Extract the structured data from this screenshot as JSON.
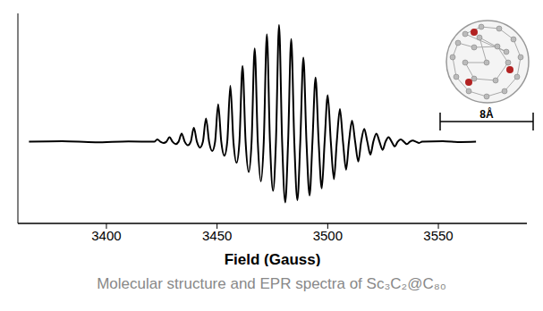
{
  "chart_data": {
    "type": "line",
    "title": "Molecular structure and EPR spectra of Sc₃C₂@C₈₀",
    "xlabel": "Field (Gauss)",
    "annotations": [
      "8Å"
    ],
    "color": "#000000",
    "xlim": [
      3360,
      3590
    ],
    "xticks": [
      3400,
      3450,
      3500,
      3550
    ],
    "ylim": [
      -70,
      110
    ],
    "tick_labels": "x",
    "grid": false,
    "x": [
      3365,
      3380,
      3395,
      3410,
      3421.6,
      3423.0,
      3424.4,
      3425.8,
      3427.1,
      3428.5,
      3429.9,
      3431.3,
      3432.6,
      3434.0,
      3435.4,
      3436.8,
      3438.1,
      3439.5,
      3440.9,
      3442.3,
      3443.6,
      3445.0,
      3446.4,
      3447.8,
      3449.1,
      3450.5,
      3451.9,
      3453.3,
      3454.6,
      3456.0,
      3457.4,
      3458.8,
      3460.1,
      3461.5,
      3462.9,
      3464.3,
      3465.6,
      3467.0,
      3468.4,
      3469.8,
      3471.1,
      3472.5,
      3473.9,
      3475.3,
      3476.6,
      3478.0,
      3479.4,
      3480.8,
      3482.1,
      3483.5,
      3484.9,
      3486.3,
      3487.6,
      3489.0,
      3490.4,
      3491.8,
      3493.1,
      3494.5,
      3495.9,
      3497.3,
      3498.6,
      3500.0,
      3501.4,
      3502.8,
      3504.1,
      3505.5,
      3506.9,
      3508.3,
      3509.6,
      3511.0,
      3512.4,
      3513.8,
      3515.1,
      3516.5,
      3517.9,
      3519.3,
      3520.6,
      3522.0,
      3523.4,
      3524.8,
      3526.1,
      3527.5,
      3528.9,
      3530.3,
      3531.6,
      3533.0,
      3534.4,
      3535.8,
      3537.1,
      3538.5,
      3539.9,
      3541.3,
      3542.6,
      3552,
      3560,
      3567
    ],
    "values": [
      0,
      0.5,
      -0.5,
      0.3,
      0,
      2,
      0,
      -1,
      0,
      4,
      0,
      -2,
      0,
      7,
      0,
      -3,
      0,
      12,
      0,
      -5,
      0,
      20,
      0,
      -8,
      0,
      32,
      0,
      -12,
      0,
      48,
      0,
      -18,
      0,
      65,
      0,
      -26,
      0,
      80,
      0,
      -34,
      0,
      92,
      0,
      -42,
      0,
      100,
      0,
      -52,
      0,
      88,
      0,
      -50,
      0,
      72,
      0,
      -46,
      0,
      55,
      0,
      -40,
      0,
      40,
      0,
      -32,
      0,
      28,
      0,
      -24,
      0,
      18,
      0,
      -17,
      0,
      11,
      0,
      -11,
      0,
      7,
      0,
      -7,
      0,
      4,
      0,
      -4,
      0,
      2,
      0,
      -2,
      0,
      1,
      0,
      -1,
      0,
      0.5,
      -0.3,
      0
    ]
  }
}
